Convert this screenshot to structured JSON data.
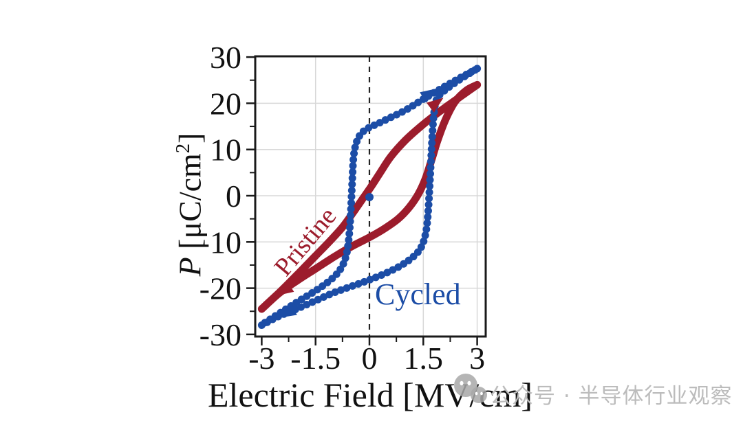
{
  "figure": {
    "background": "#ffffff",
    "labels": {
      "pristine": "Pristine",
      "cycled": "Cycled"
    },
    "watermark": {
      "icon": "wechat-icon",
      "icon_color": "#a8a8a8",
      "text": "公众号 · 半导体行业观察",
      "text_color": "#bcbcbc"
    }
  },
  "chart_data": {
    "type": "line",
    "title": "",
    "xlabel": "Electric Field [MV/cm]",
    "ylabel": "P [μC/cm²]",
    "xlim": [
      -3.18,
      3.24
    ],
    "ylim": [
      -30.5,
      30.2
    ],
    "grid": true,
    "zero_field_dashed_line": 0,
    "x_ticks_major": [
      -3,
      -1.5,
      0,
      1.5,
      3
    ],
    "x_ticks_minor": [
      -2.25,
      -0.75,
      0.75,
      2.25
    ],
    "x_tick_labels": [
      "-3",
      "-1.5",
      "0",
      "1.5",
      "3"
    ],
    "y_ticks_major": [
      30,
      20,
      10,
      0,
      -10,
      -20,
      -30
    ],
    "y_ticks_minor": [
      25,
      15,
      5,
      -5,
      -15,
      -25
    ],
    "y_tick_labels": [
      "30",
      "20",
      "10",
      "0",
      "-10",
      "-20",
      "-30"
    ],
    "x_grid_values": [
      -1.5,
      1.5,
      3
    ],
    "y_grid_values": [
      -20,
      -10,
      0,
      10,
      20
    ],
    "series": [
      {
        "name": "Pristine",
        "color": "#9c1c2c",
        "style": "solid",
        "branches": {
          "descending": [
            [
              3,
              24
            ],
            [
              2.6,
              21.8
            ],
            [
              2.2,
              19.6
            ],
            [
              1.8,
              17.3
            ],
            [
              1.4,
              14.8
            ],
            [
              1.0,
              12.0
            ],
            [
              0.6,
              8.5
            ],
            [
              0.3,
              5.0
            ],
            [
              0.05,
              2.0
            ],
            [
              -0.2,
              -0.8
            ],
            [
              -0.45,
              -3.6
            ],
            [
              -0.75,
              -6.8
            ],
            [
              -1.1,
              -9.8
            ],
            [
              -1.5,
              -13.0
            ],
            [
              -1.95,
              -16.6
            ],
            [
              -2.45,
              -20.5
            ],
            [
              -3,
              -24.5
            ]
          ],
          "ascending": [
            [
              -3,
              -24.5
            ],
            [
              -2.5,
              -21.0
            ],
            [
              -2.0,
              -18.3
            ],
            [
              -1.5,
              -15.8
            ],
            [
              -1.0,
              -13.3
            ],
            [
              -0.5,
              -11.0
            ],
            [
              0,
              -9.0
            ],
            [
              0.4,
              -7.2
            ],
            [
              0.8,
              -5.0
            ],
            [
              1.1,
              -2.6
            ],
            [
              1.35,
              0.2
            ],
            [
              1.55,
              3.5
            ],
            [
              1.72,
              7.5
            ],
            [
              1.9,
              12.0
            ],
            [
              2.12,
              16.5
            ],
            [
              2.38,
              20.3
            ],
            [
              2.7,
              22.8
            ],
            [
              3,
              24
            ]
          ]
        }
      },
      {
        "name": "Cycled",
        "color": "#1c4da6",
        "style": "beaded",
        "branches": {
          "descending": [
            [
              3,
              27.5
            ],
            [
              2.5,
              25.4
            ],
            [
              2.0,
              23.2
            ],
            [
              1.5,
              20.9
            ],
            [
              1.0,
              18.5
            ],
            [
              0.5,
              16.6
            ],
            [
              0.15,
              15.3
            ],
            [
              0,
              14.8
            ],
            [
              -0.2,
              13.7
            ],
            [
              -0.35,
              11.8
            ],
            [
              -0.44,
              8.5
            ],
            [
              -0.48,
              3.0
            ],
            [
              -0.52,
              -3.5
            ],
            [
              -0.57,
              -9.0
            ],
            [
              -0.65,
              -13.0
            ],
            [
              -0.8,
              -15.8
            ],
            [
              -1.05,
              -18.0
            ],
            [
              -1.45,
              -20.3
            ],
            [
              -1.95,
              -22.7
            ],
            [
              -2.5,
              -25.4
            ],
            [
              -3,
              -27.9
            ]
          ],
          "ascending": [
            [
              -3,
              -28.0
            ],
            [
              -2.5,
              -26.0
            ],
            [
              -2.0,
              -24.4
            ],
            [
              -1.5,
              -22.7
            ],
            [
              -1.0,
              -21.0
            ],
            [
              -0.5,
              -19.6
            ],
            [
              0,
              -18.2
            ],
            [
              0.5,
              -16.6
            ],
            [
              0.9,
              -15.0
            ],
            [
              1.25,
              -13.0
            ],
            [
              1.45,
              -11.0
            ],
            [
              1.57,
              -8.0
            ],
            [
              1.63,
              -4.0
            ],
            [
              1.67,
              1.0
            ],
            [
              1.71,
              7.0
            ],
            [
              1.75,
              13.0
            ],
            [
              1.8,
              18.0
            ],
            [
              1.88,
              21.0
            ],
            [
              2.1,
              22.8
            ],
            [
              2.45,
              24.8
            ],
            [
              2.75,
              26.3
            ],
            [
              3,
              27.5
            ]
          ]
        },
        "start_marker": [
          0,
          -0.3
        ]
      }
    ],
    "direction_arrows": [
      {
        "series": "Cycled",
        "x": 1.88,
        "y": 23.2,
        "rot": -33
      },
      {
        "series": "Pristine",
        "x": 2.06,
        "y": 21.2,
        "rot": -37
      },
      {
        "series": "Pristine",
        "x": -2.58,
        "y": -21.6,
        "rot": 147
      },
      {
        "series": "Cycled",
        "x": -2.5,
        "y": -26.4,
        "rot": 150
      }
    ],
    "legend_position": "in-plot-annotations",
    "annotations": [
      {
        "text": "Pristine",
        "color": "#9c1c2c",
        "x": -1.78,
        "y": -10.0,
        "rotation_deg": -50
      },
      {
        "text": "Cycled",
        "color": "#1c4da6",
        "x": 0.6,
        "y": -21.2,
        "rotation_deg": 0
      }
    ]
  },
  "axes": {
    "x": {
      "title": "Electric Field [MV/cm]"
    },
    "y": {
      "symbol": "P",
      "unit_pre": " [μC/cm",
      "sup": "2",
      "unit_post": "]"
    }
  },
  "style_colors": {
    "axis_line": "#1a1a1a",
    "gridline": "#d8d8d8",
    "dashed_zero_line": "#222222",
    "tick_text": "#111111"
  }
}
